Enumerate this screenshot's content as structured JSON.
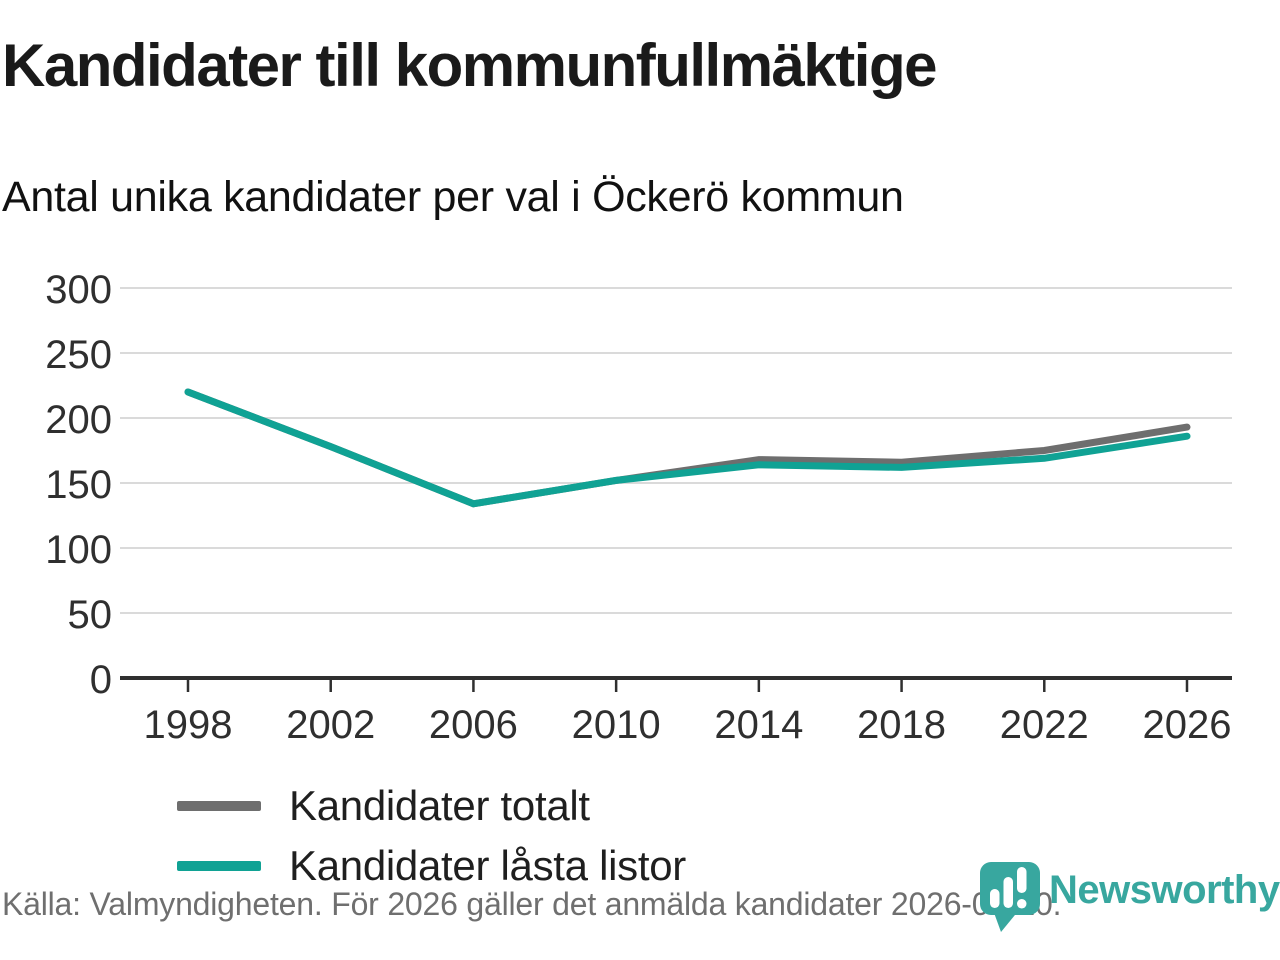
{
  "header": {
    "title": "Kandidater till kommunfullmäktige",
    "subtitle": "Antal unika kandidater per val i Öckerö kommun"
  },
  "chart_data": {
    "type": "line",
    "categories": [
      "1998",
      "2002",
      "2006",
      "2010",
      "2014",
      "2018",
      "2022",
      "2026"
    ],
    "series": [
      {
        "name": "Kandidater totalt",
        "color": "#6e6e6e",
        "values": [
          220,
          178,
          134,
          152,
          168,
          166,
          175,
          193
        ]
      },
      {
        "name": "Kandidater låsta listor",
        "color": "#10a294",
        "values": [
          220,
          178,
          134,
          152,
          164,
          162,
          169,
          186
        ]
      }
    ],
    "title": "Kandidater till kommunfullmäktige",
    "xlabel": "",
    "ylabel": "",
    "ylim": [
      0,
      300
    ],
    "yticks": [
      0,
      50,
      100,
      150,
      200,
      250,
      300
    ],
    "grid": true,
    "legend_position": "inside-bottom-left"
  },
  "footer": {
    "source": "Källa: Valmyndigheten. För 2026 gäller det anmälda kandidater 2026-04-10.",
    "brand": "Newsworthy"
  },
  "colors": {
    "line_teal": "#10a294",
    "line_gray": "#6e6e6e",
    "logo_teal": "#38a79f",
    "grid": "#dadada",
    "axis": "#2f2f2f",
    "tick_text": "#2f2f2f"
  }
}
